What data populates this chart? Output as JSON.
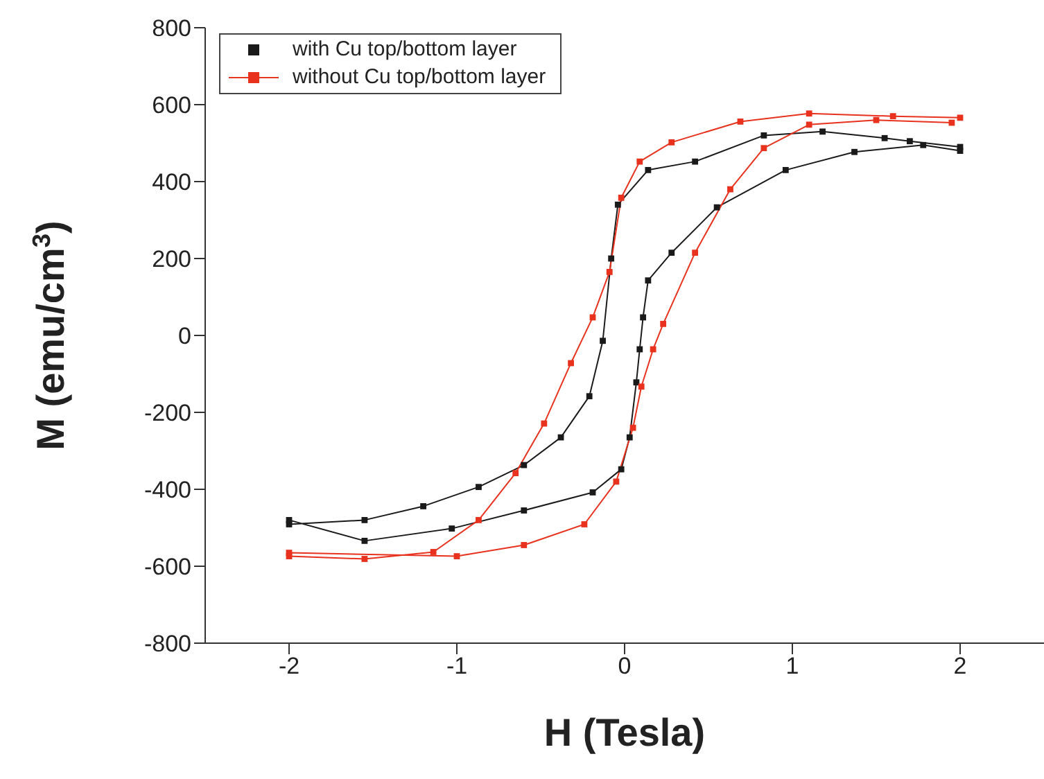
{
  "chart_data": {
    "type": "line",
    "xlabel": "H (Tesla)",
    "ylabel": "M (emu/cm$^{3}$)",
    "xlim": [
      -2.5,
      2.5
    ],
    "xticks": [
      -2,
      -1,
      0,
      1,
      2
    ],
    "ylim": [
      -800,
      800
    ],
    "yticks": [
      -800,
      -600,
      -400,
      -200,
      0,
      200,
      400,
      600,
      800
    ],
    "grid": false,
    "legend": "top left",
    "marker": "square",
    "line_style": "solid",
    "series": [
      {
        "name": "with Cu top/bottom layer",
        "color": "#1a1a1a",
        "x": [
          2,
          1.7,
          1.55,
          1.18,
          0.83,
          0.42,
          0.14,
          -0.04,
          -0.08,
          -0.13,
          -0.21,
          -0.38,
          -0.6,
          -0.87,
          -1.2,
          -1.55,
          -2,
          -2,
          -1.55,
          -1.03,
          -0.6,
          -0.19,
          -0.02,
          0.03,
          0.07,
          0.09,
          0.11,
          0.14,
          0.28,
          0.55,
          0.96,
          1.37,
          1.78,
          2
        ],
        "values": [
          490,
          505,
          513,
          530,
          520,
          452,
          430,
          340,
          200,
          -14,
          -158,
          -265,
          -337,
          -394,
          -444,
          -480,
          -491,
          -480,
          -534,
          -502,
          -455,
          -408,
          -348,
          -265,
          -122,
          -36,
          47,
          143,
          215,
          333,
          430,
          477,
          495,
          480
        ]
      },
      {
        "name": "without Cu top/bottom layer",
        "color": "#e8321e",
        "x": [
          2,
          1.6,
          1.1,
          0.69,
          0.28,
          0.09,
          -0.02,
          -0.09,
          -0.19,
          -0.32,
          -0.48,
          -0.65,
          -0.87,
          -1.14,
          -1.55,
          -2,
          -2,
          -1,
          -0.6,
          -0.24,
          -0.05,
          0.05,
          0.1,
          0.17,
          0.23,
          0.42,
          0.63,
          0.83,
          1.1,
          1.5,
          1.95
        ],
        "values": [
          566,
          570,
          577,
          556,
          502,
          452,
          358,
          165,
          47,
          -72,
          -229,
          -358,
          -480,
          -563,
          -581,
          -574,
          -565,
          -574,
          -545,
          -491,
          -380,
          -240,
          -133,
          -36,
          30,
          215,
          380,
          487,
          548,
          560,
          553
        ]
      }
    ]
  }
}
